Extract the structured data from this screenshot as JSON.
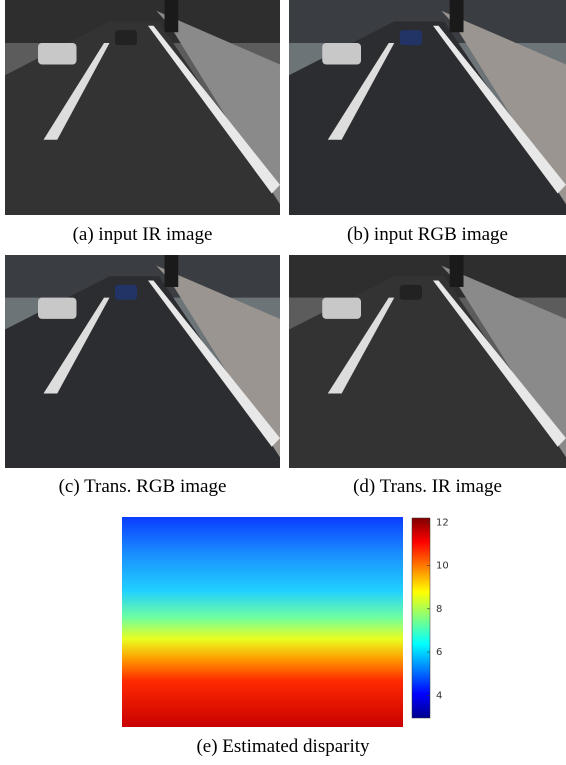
{
  "panels": [
    {
      "caption": "(a) input IR image"
    },
    {
      "caption": "(b) input RGB image"
    },
    {
      "caption": "(c) Trans. RGB image"
    },
    {
      "caption": "(d) Trans. IR image"
    }
  ],
  "disparity": {
    "caption": "(e) Estimated disparity",
    "colorbar": {
      "lim": [
        2.95,
        12.2
      ],
      "ticks": [
        4,
        6,
        8,
        10,
        12
      ]
    }
  }
}
